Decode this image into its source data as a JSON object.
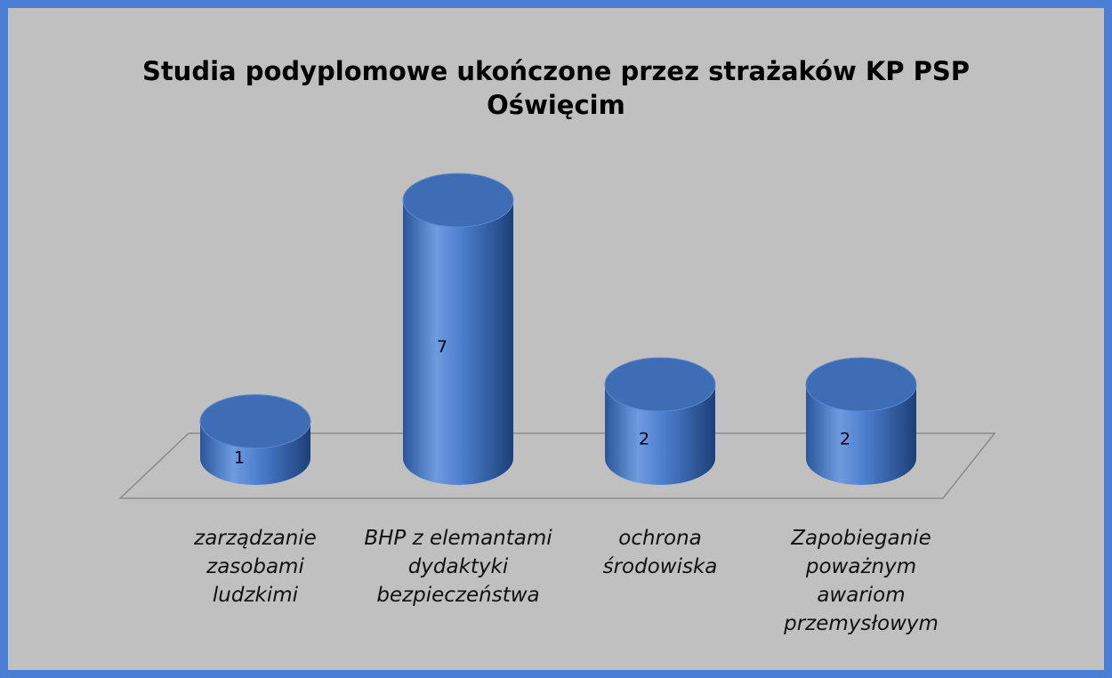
{
  "chart_data": {
    "type": "bar3d",
    "title": "Studia podyplomowe ukończone przez strażaków KP PSP Oświęcim",
    "categories": [
      "zarządzanie zasobami ludzkimi",
      "BHP z elemantami dydaktyki bezpieczeństwa",
      "ochrona środowiska",
      "Zapobieganie poważnym awariom przemysłowym"
    ],
    "values": [
      1,
      7,
      2,
      2
    ],
    "color": "#4a7ccc"
  }
}
